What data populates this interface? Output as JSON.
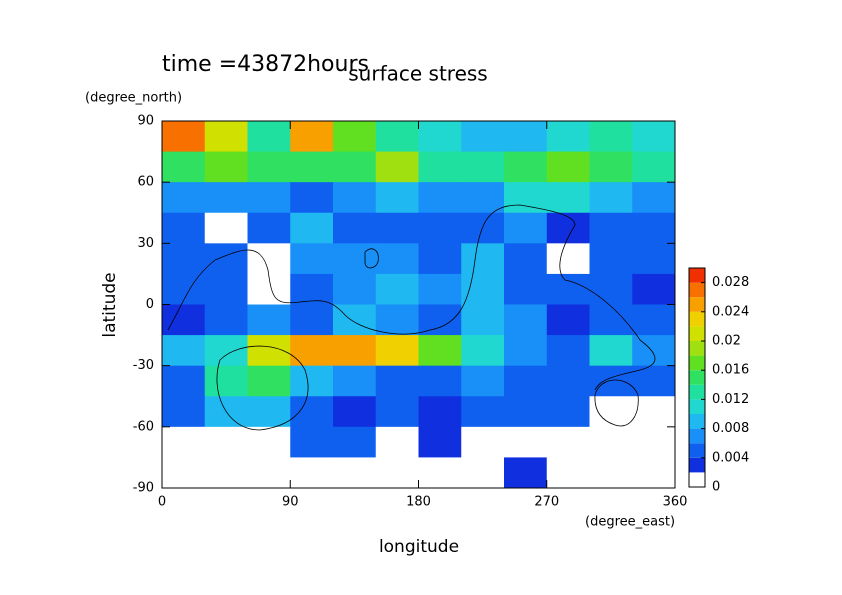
{
  "chart_data": {
    "type": "contour",
    "title": "surface stress",
    "subtitle": "time =43872hours",
    "x_label": "longitude",
    "x_unit": "(degree_east)",
    "y_label": "latitude",
    "y_unit": "(degree_north)",
    "xlim": [
      0,
      360
    ],
    "xticks": [
      0,
      90,
      180,
      270,
      360
    ],
    "ylim": [
      -90,
      90
    ],
    "yticks": [
      -90,
      -60,
      -30,
      0,
      30,
      60,
      90
    ],
    "x": [
      15,
      45,
      75,
      105,
      135,
      165,
      195,
      225,
      255,
      285,
      315,
      345
    ],
    "y": [
      82.5,
      67.5,
      52.5,
      37.5,
      22.5,
      7.5,
      -7.5,
      -22.5,
      -37.5,
      -52.5,
      -67.5,
      -82.5
    ],
    "z": [
      [
        0.026,
        0.02,
        0.012,
        0.024,
        0.016,
        0.012,
        0.01,
        0.008,
        0.008,
        0.01,
        0.012,
        0.01
      ],
      [
        0.014,
        0.016,
        0.014,
        0.014,
        0.014,
        0.018,
        0.012,
        0.012,
        0.014,
        0.016,
        0.014,
        0.012
      ],
      [
        0.006,
        0.006,
        0.006,
        0.004,
        0.006,
        0.008,
        0.006,
        0.006,
        0.01,
        0.01,
        0.008,
        0.006
      ],
      [
        0.004,
        0.001,
        0.004,
        0.008,
        0.004,
        0.004,
        0.004,
        0.004,
        0.006,
        0.002,
        0.004,
        0.004
      ],
      [
        0.004,
        0.004,
        0.001,
        0.006,
        0.006,
        0.006,
        0.004,
        0.008,
        0.004,
        0.001,
        0.004,
        0.004
      ],
      [
        0.004,
        0.004,
        0.001,
        0.004,
        0.006,
        0.008,
        0.006,
        0.008,
        0.004,
        0.004,
        0.004,
        0.002
      ],
      [
        0.002,
        0.004,
        0.006,
        0.004,
        0.008,
        0.006,
        0.004,
        0.008,
        0.006,
        0.002,
        0.004,
        0.004
      ],
      [
        0.008,
        0.01,
        0.02,
        0.024,
        0.024,
        0.022,
        0.016,
        0.01,
        0.006,
        0.004,
        0.01,
        0.006
      ],
      [
        0.004,
        0.012,
        0.014,
        0.008,
        0.006,
        0.004,
        0.004,
        0.006,
        0.004,
        0.004,
        0.004,
        0.004
      ],
      [
        0.004,
        0.008,
        0.008,
        0.004,
        0.002,
        0.004,
        0.002,
        0.004,
        0.004,
        0.004,
        0.001,
        0.001
      ],
      [
        0.001,
        0.001,
        0.001,
        0.004,
        0.004,
        0.001,
        0.002,
        0.001,
        0.001,
        0.001,
        0.001,
        0.001
      ],
      [
        0.001,
        0.001,
        0.001,
        0.001,
        0.001,
        0.001,
        0.001,
        0.001,
        0.002,
        0.001,
        0.001,
        0.001
      ]
    ],
    "colorbar": {
      "levels": [
        0,
        0.002,
        0.004,
        0.006,
        0.008,
        0.01,
        0.012,
        0.014,
        0.016,
        0.018,
        0.02,
        0.022,
        0.024,
        0.026,
        0.028,
        0.03
      ],
      "colors": [
        "#ffffff",
        "#1030e0",
        "#1060f0",
        "#1890f8",
        "#20b8f0",
        "#20d8d0",
        "#20e0a0",
        "#30e060",
        "#60e020",
        "#a0e010",
        "#d0e000",
        "#f0d000",
        "#f8a000",
        "#f87000",
        "#f03000"
      ],
      "ticks": [
        0,
        0.004,
        0.008,
        0.012,
        0.016,
        0.02,
        0.024,
        0.028
      ]
    }
  }
}
